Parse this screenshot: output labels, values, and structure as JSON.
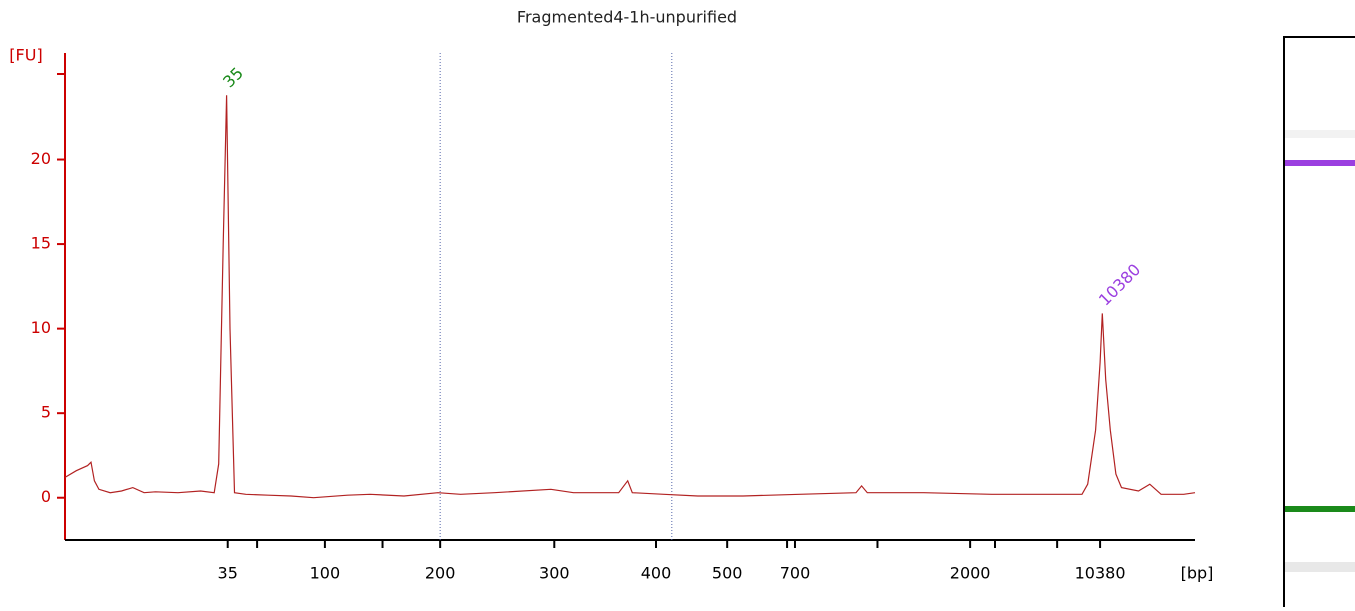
{
  "chart_data": {
    "type": "line",
    "title": "Fragmented4-1h-unpurified",
    "y_label": "[FU]",
    "x_label": "[bp]",
    "xlim": [
      0,
      100
    ],
    "xticks": [
      {
        "value": 14.4,
        "label": "35"
      },
      {
        "value": 23.0,
        "label": "100"
      },
      {
        "value": 33.2,
        "label": "200"
      },
      {
        "value": 43.3,
        "label": "300"
      },
      {
        "value": 52.3,
        "label": "400"
      },
      {
        "value": 58.6,
        "label": "500"
      },
      {
        "value": 64.6,
        "label": "700"
      },
      {
        "value": 80.1,
        "label": "2000"
      },
      {
        "value": 91.6,
        "label": "10380"
      }
    ],
    "xticks_unlabeled": [
      17.0,
      28.1,
      63.9,
      71.9,
      82.3,
      87.8
    ],
    "markers": [
      33.2,
      53.7
    ],
    "ylim": [
      -2.5,
      26.3
    ],
    "yticks": [
      0,
      5,
      10,
      15,
      20
    ],
    "axis_color": "#cc0000",
    "series": [
      {
        "color": "#b22222",
        "x": [
          0,
          1,
          2,
          2.3,
          2.6,
          3,
          4,
          5,
          6,
          7,
          8,
          10,
          12,
          13.2,
          13.6,
          14.0,
          14.3,
          14.6,
          15.0,
          16,
          18,
          20,
          22,
          25,
          27,
          30,
          33,
          35,
          38,
          43,
          45,
          49,
          49.8,
          50.2,
          53,
          56,
          60,
          65,
          70,
          70.5,
          71,
          76,
          82,
          90,
          90.5,
          91.2,
          91.6,
          91.8,
          92.1,
          92.5,
          93,
          93.5,
          95,
          96,
          97,
          99,
          100
        ],
        "values": [
          1.2,
          1.6,
          1.9,
          2.1,
          1.0,
          0.5,
          0.3,
          0.4,
          0.6,
          0.3,
          0.35,
          0.3,
          0.4,
          0.3,
          2.0,
          15,
          23.8,
          10,
          0.3,
          0.2,
          0.15,
          0.1,
          0.0,
          0.15,
          0.2,
          0.1,
          0.3,
          0.2,
          0.3,
          0.5,
          0.3,
          0.3,
          1.0,
          0.3,
          0.2,
          0.1,
          0.1,
          0.2,
          0.3,
          0.7,
          0.3,
          0.3,
          0.2,
          0.2,
          0.8,
          4,
          8,
          10.9,
          7,
          4,
          1.4,
          0.6,
          0.4,
          0.8,
          0.2,
          0.2,
          0.3
        ]
      }
    ],
    "peaks": [
      {
        "label": "35",
        "x": 14.3,
        "y": 23.8,
        "color": "#1a8a1a"
      },
      {
        "label": "10380",
        "x": 91.8,
        "y": 10.9,
        "color": "#9b3fe0"
      }
    ]
  }
}
